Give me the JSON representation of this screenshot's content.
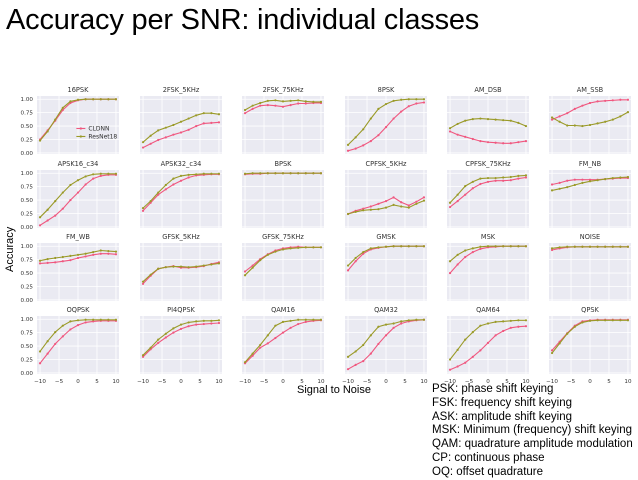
{
  "title": "Accuracy per SNR: individual classes",
  "chart_data": {
    "type": "line",
    "ylabel": "Accuracy",
    "xlabel": "Signal to Noise",
    "x": [
      -10,
      -8,
      -6,
      -4,
      -2,
      0,
      2,
      4,
      6,
      8,
      10
    ],
    "xticks": [
      -10,
      -5,
      0,
      5,
      10
    ],
    "xtick_labels": [
      "−10",
      "−5",
      "0",
      "5",
      "10"
    ],
    "yticks": [
      0,
      0.25,
      0.5,
      0.75,
      1.0
    ],
    "ytick_labels": [
      "0.00",
      "0.25",
      "0.50",
      "0.75",
      "1.00"
    ],
    "xlim": [
      -10.8,
      10.8
    ],
    "ylim": [
      -0.02,
      1.06
    ],
    "grid": true,
    "legend": {
      "placement": "center-right",
      "panel": "16PSK",
      "entries": [
        "CLDNN",
        "ResNet18"
      ]
    },
    "colors": {
      "CLDNN": "#f0577f",
      "ResNet18": "#9a9a28"
    },
    "panels": [
      {
        "title": "16PSK",
        "series": [
          {
            "name": "CLDNN",
            "values": [
              0.25,
              0.42,
              0.6,
              0.8,
              0.93,
              0.98,
              1.0,
              1.0,
              1.0,
              1.0,
              1.0
            ]
          },
          {
            "name": "ResNet18",
            "values": [
              0.23,
              0.4,
              0.62,
              0.84,
              0.96,
              0.99,
              1.0,
              1.0,
              1.0,
              1.0,
              1.0
            ]
          }
        ]
      },
      {
        "title": "2FSK_5KHz",
        "series": [
          {
            "name": "CLDNN",
            "values": [
              0.1,
              0.17,
              0.24,
              0.29,
              0.34,
              0.38,
              0.43,
              0.5,
              0.55,
              0.56,
              0.57
            ]
          },
          {
            "name": "ResNet18",
            "values": [
              0.2,
              0.32,
              0.42,
              0.47,
              0.52,
              0.58,
              0.64,
              0.7,
              0.74,
              0.74,
              0.72
            ]
          }
        ]
      },
      {
        "title": "2FSK_75KHz",
        "series": [
          {
            "name": "CLDNN",
            "values": [
              0.74,
              0.82,
              0.88,
              0.89,
              0.88,
              0.86,
              0.89,
              0.92,
              0.92,
              0.93,
              0.93
            ]
          },
          {
            "name": "ResNet18",
            "values": [
              0.8,
              0.88,
              0.93,
              0.97,
              0.98,
              0.96,
              0.97,
              0.98,
              0.96,
              0.95,
              0.95
            ]
          }
        ]
      },
      {
        "title": "8PSK",
        "series": [
          {
            "name": "CLDNN",
            "values": [
              0.04,
              0.08,
              0.14,
              0.22,
              0.33,
              0.48,
              0.64,
              0.77,
              0.87,
              0.92,
              0.94
            ]
          },
          {
            "name": "ResNet18",
            "values": [
              0.15,
              0.29,
              0.44,
              0.64,
              0.82,
              0.91,
              0.97,
              0.99,
              1.0,
              1.0,
              1.0
            ]
          }
        ]
      },
      {
        "title": "AM_DSB",
        "series": [
          {
            "name": "CLDNN",
            "values": [
              0.4,
              0.34,
              0.3,
              0.26,
              0.22,
              0.2,
              0.19,
              0.18,
              0.18,
              0.2,
              0.22
            ]
          },
          {
            "name": "ResNet18",
            "values": [
              0.46,
              0.54,
              0.6,
              0.63,
              0.64,
              0.63,
              0.62,
              0.61,
              0.6,
              0.56,
              0.5
            ]
          }
        ]
      },
      {
        "title": "AM_SSB",
        "series": [
          {
            "name": "CLDNN",
            "values": [
              0.62,
              0.68,
              0.74,
              0.82,
              0.88,
              0.93,
              0.96,
              0.97,
              0.98,
              0.99,
              0.99
            ]
          },
          {
            "name": "ResNet18",
            "values": [
              0.66,
              0.58,
              0.51,
              0.51,
              0.5,
              0.52,
              0.55,
              0.58,
              0.62,
              0.68,
              0.76
            ]
          }
        ]
      },
      {
        "title": "APSK16_c34",
        "series": [
          {
            "name": "CLDNN",
            "values": [
              0.03,
              0.12,
              0.21,
              0.34,
              0.5,
              0.64,
              0.79,
              0.9,
              0.95,
              0.97,
              0.97
            ]
          },
          {
            "name": "ResNet18",
            "values": [
              0.18,
              0.32,
              0.48,
              0.64,
              0.78,
              0.87,
              0.94,
              0.98,
              0.99,
              0.99,
              0.99
            ]
          }
        ]
      },
      {
        "title": "APSK32_c34",
        "series": [
          {
            "name": "CLDNN",
            "values": [
              0.3,
              0.45,
              0.6,
              0.7,
              0.79,
              0.86,
              0.92,
              0.96,
              0.97,
              0.98,
              0.98
            ]
          },
          {
            "name": "ResNet18",
            "values": [
              0.35,
              0.48,
              0.64,
              0.78,
              0.9,
              0.95,
              0.97,
              0.98,
              0.99,
              0.99,
              0.99
            ]
          }
        ]
      },
      {
        "title": "BPSK",
        "series": [
          {
            "name": "CLDNN",
            "values": [
              0.98,
              0.99,
              0.99,
              1.0,
              1.0,
              1.0,
              1.0,
              1.0,
              1.0,
              1.0,
              1.0
            ]
          },
          {
            "name": "ResNet18",
            "values": [
              0.99,
              1.0,
              1.0,
              1.0,
              1.0,
              1.0,
              1.0,
              1.0,
              1.0,
              1.0,
              1.0
            ]
          }
        ]
      },
      {
        "title": "CPFSK_5KHz",
        "series": [
          {
            "name": "CLDNN",
            "values": [
              0.24,
              0.3,
              0.34,
              0.38,
              0.43,
              0.48,
              0.55,
              0.46,
              0.4,
              0.47,
              0.55
            ]
          },
          {
            "name": "ResNet18",
            "values": [
              0.24,
              0.28,
              0.31,
              0.32,
              0.33,
              0.36,
              0.41,
              0.38,
              0.36,
              0.43,
              0.49
            ]
          }
        ]
      },
      {
        "title": "CPFSK_75KHz",
        "series": [
          {
            "name": "CLDNN",
            "values": [
              0.37,
              0.48,
              0.6,
              0.72,
              0.8,
              0.84,
              0.86,
              0.86,
              0.87,
              0.9,
              0.92
            ]
          },
          {
            "name": "ResNet18",
            "values": [
              0.45,
              0.6,
              0.76,
              0.84,
              0.9,
              0.91,
              0.91,
              0.92,
              0.93,
              0.95,
              0.96
            ]
          }
        ]
      },
      {
        "title": "FM_NB",
        "series": [
          {
            "name": "CLDNN",
            "values": [
              0.79,
              0.82,
              0.86,
              0.88,
              0.88,
              0.88,
              0.88,
              0.89,
              0.9,
              0.91,
              0.91
            ]
          },
          {
            "name": "ResNet18",
            "values": [
              0.68,
              0.71,
              0.74,
              0.78,
              0.82,
              0.85,
              0.87,
              0.89,
              0.91,
              0.92,
              0.93
            ]
          }
        ]
      },
      {
        "title": "FM_WB",
        "series": [
          {
            "name": "CLDNN",
            "values": [
              0.68,
              0.69,
              0.7,
              0.72,
              0.74,
              0.78,
              0.81,
              0.84,
              0.86,
              0.86,
              0.85
            ]
          },
          {
            "name": "ResNet18",
            "values": [
              0.73,
              0.76,
              0.78,
              0.8,
              0.82,
              0.84,
              0.86,
              0.89,
              0.92,
              0.91,
              0.9
            ]
          }
        ]
      },
      {
        "title": "GFSK_5KHz",
        "series": [
          {
            "name": "CLDNN",
            "values": [
              0.3,
              0.45,
              0.58,
              0.61,
              0.63,
              0.6,
              0.6,
              0.61,
              0.63,
              0.67,
              0.7
            ]
          },
          {
            "name": "ResNet18",
            "values": [
              0.34,
              0.47,
              0.58,
              0.61,
              0.62,
              0.62,
              0.61,
              0.62,
              0.64,
              0.66,
              0.68
            ]
          }
        ]
      },
      {
        "title": "GFSK_75KHz",
        "series": [
          {
            "name": "CLDNN",
            "values": [
              0.53,
              0.64,
              0.76,
              0.85,
              0.92,
              0.96,
              0.98,
              0.99,
              0.98,
              0.98,
              0.98
            ]
          },
          {
            "name": "ResNet18",
            "values": [
              0.46,
              0.6,
              0.74,
              0.84,
              0.9,
              0.94,
              0.96,
              0.97,
              0.98,
              0.98,
              0.98
            ]
          }
        ]
      },
      {
        "title": "GMSK",
        "series": [
          {
            "name": "CLDNN",
            "values": [
              0.55,
              0.72,
              0.86,
              0.94,
              0.97,
              0.99,
              1.0,
              1.0,
              1.0,
              1.0,
              1.0
            ]
          },
          {
            "name": "ResNet18",
            "values": [
              0.64,
              0.78,
              0.89,
              0.96,
              0.98,
              0.99,
              1.0,
              1.0,
              1.0,
              1.0,
              1.0
            ]
          }
        ]
      },
      {
        "title": "MSK",
        "series": [
          {
            "name": "CLDNN",
            "values": [
              0.5,
              0.66,
              0.8,
              0.89,
              0.95,
              0.98,
              0.99,
              1.0,
              1.0,
              1.0,
              1.0
            ]
          },
          {
            "name": "ResNet18",
            "values": [
              0.72,
              0.84,
              0.92,
              0.96,
              0.99,
              1.0,
              1.0,
              1.0,
              1.0,
              1.0,
              1.0
            ]
          }
        ]
      },
      {
        "title": "NOISE",
        "series": [
          {
            "name": "CLDNN",
            "values": [
              0.93,
              0.96,
              0.98,
              0.99,
              0.99,
              0.99,
              0.99,
              0.99,
              0.99,
              0.99,
              0.99
            ]
          },
          {
            "name": "ResNet18",
            "values": [
              0.96,
              0.98,
              0.99,
              0.99,
              0.99,
              0.99,
              0.99,
              0.99,
              0.99,
              0.99,
              0.99
            ]
          }
        ]
      },
      {
        "title": "OQPSK",
        "series": [
          {
            "name": "CLDNN",
            "values": [
              0.18,
              0.36,
              0.54,
              0.68,
              0.81,
              0.89,
              0.94,
              0.96,
              0.97,
              0.97,
              0.97
            ]
          },
          {
            "name": "ResNet18",
            "values": [
              0.4,
              0.59,
              0.76,
              0.88,
              0.96,
              0.98,
              0.99,
              0.99,
              0.99,
              0.99,
              0.99
            ]
          }
        ]
      },
      {
        "title": "PI4QPSK",
        "series": [
          {
            "name": "CLDNN",
            "values": [
              0.3,
              0.44,
              0.56,
              0.66,
              0.75,
              0.82,
              0.87,
              0.9,
              0.91,
              0.92,
              0.93
            ]
          },
          {
            "name": "ResNet18",
            "values": [
              0.33,
              0.47,
              0.62,
              0.73,
              0.83,
              0.9,
              0.94,
              0.96,
              0.97,
              0.97,
              0.98
            ]
          }
        ]
      },
      {
        "title": "QAM16",
        "series": [
          {
            "name": "CLDNN",
            "values": [
              0.18,
              0.32,
              0.47,
              0.55,
              0.65,
              0.75,
              0.84,
              0.91,
              0.95,
              0.97,
              0.98
            ]
          },
          {
            "name": "ResNet18",
            "values": [
              0.2,
              0.36,
              0.52,
              0.7,
              0.88,
              0.95,
              0.97,
              0.99,
              0.99,
              0.99,
              0.99
            ]
          }
        ]
      },
      {
        "title": "QAM32",
        "series": [
          {
            "name": "CLDNN",
            "values": [
              0.07,
              0.15,
              0.22,
              0.36,
              0.54,
              0.7,
              0.84,
              0.92,
              0.96,
              0.98,
              0.99
            ]
          },
          {
            "name": "ResNet18",
            "values": [
              0.3,
              0.4,
              0.52,
              0.7,
              0.86,
              0.9,
              0.92,
              0.96,
              0.98,
              0.99,
              0.99
            ]
          }
        ]
      },
      {
        "title": "QAM64",
        "series": [
          {
            "name": "CLDNN",
            "values": [
              0.06,
              0.12,
              0.19,
              0.3,
              0.42,
              0.56,
              0.7,
              0.78,
              0.84,
              0.86,
              0.87
            ]
          },
          {
            "name": "ResNet18",
            "values": [
              0.25,
              0.43,
              0.62,
              0.76,
              0.88,
              0.92,
              0.95,
              0.96,
              0.97,
              0.98,
              0.98
            ]
          }
        ]
      },
      {
        "title": "QPSK",
        "series": [
          {
            "name": "CLDNN",
            "values": [
              0.42,
              0.58,
              0.74,
              0.88,
              0.96,
              0.98,
              0.99,
              0.99,
              0.99,
              0.99,
              0.99
            ]
          },
          {
            "name": "ResNet18",
            "values": [
              0.37,
              0.55,
              0.73,
              0.86,
              0.94,
              0.97,
              0.98,
              0.98,
              0.98,
              0.98,
              0.98
            ]
          }
        ]
      }
    ]
  },
  "glossary": [
    "PSK: phase shift keying",
    "FSK: frequency shift keying",
    "ASK: amplitude shift keying",
    "MSK: Minimum (frequency) shift keying",
    "QAM: quadrature amplitude modulation",
    "CP: continuous phase",
    "OQ: offset quadrature"
  ]
}
